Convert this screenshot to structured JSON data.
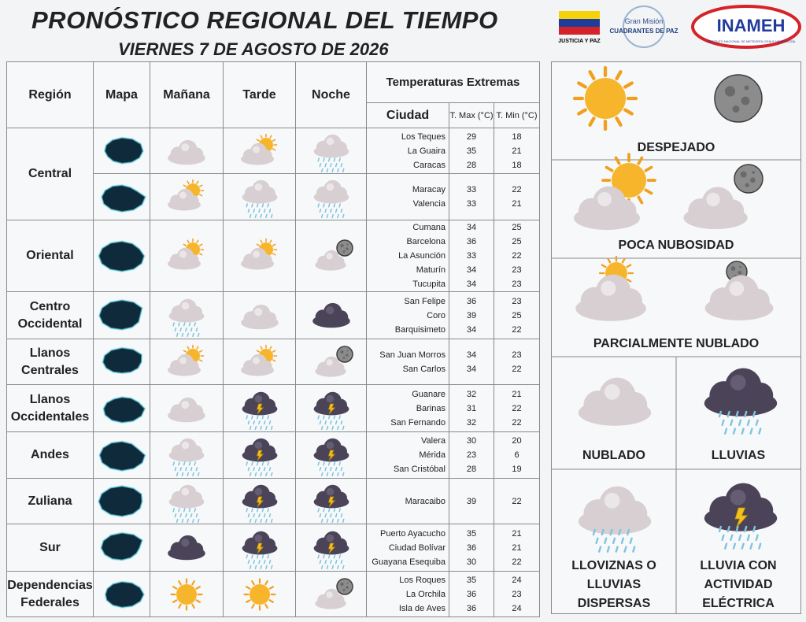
{
  "header": {
    "title": "PRONÓSTICO REGIONAL DEL TIEMPO",
    "subtitle": "VIERNES 7 DE AGOSTO DE 2026",
    "logos": {
      "flag_caption": "JUSTICIA Y PAZ",
      "mision_top": "Gran Misión",
      "mision_main": "CUADRANTES DE PAZ",
      "inameh": "INAMEH",
      "inameh_caption": "INSTITUTO NACIONAL DE METEOROLOGÍA E HIDROLOGÍA"
    }
  },
  "table": {
    "headers": {
      "region": "Región",
      "map": "Mapa",
      "morning": "Mañana",
      "afternoon": "Tarde",
      "night": "Noche",
      "temps": "Temperaturas  Extremas",
      "city": "Ciudad",
      "tmax": "T. Max (°C)",
      "tmin": "T. Min (°C)"
    },
    "regions": [
      {
        "name": "Central",
        "cities": [
          {
            "name": "Los Teques",
            "max": 29,
            "min": 18
          },
          {
            "name": "La Guaira",
            "max": 35,
            "min": 21
          },
          {
            "name": "Caracas",
            "max": 28,
            "min": 18
          },
          {
            "name": "Maracay",
            "max": 33,
            "min": 22
          },
          {
            "name": "Valencia",
            "max": 33,
            "min": 21
          }
        ]
      },
      {
        "name": "Oriental",
        "cities": [
          {
            "name": "Cumana",
            "max": 34,
            "min": 25
          },
          {
            "name": "Barcelona",
            "max": 36,
            "min": 25
          },
          {
            "name": "La Asunción",
            "max": 33,
            "min": 22
          },
          {
            "name": "Maturín",
            "max": 34,
            "min": 23
          },
          {
            "name": "Tucupita",
            "max": 34,
            "min": 23
          }
        ]
      },
      {
        "name": "Centro Occidental",
        "cities": [
          {
            "name": "San Felipe",
            "max": 36,
            "min": 23
          },
          {
            "name": "Coro",
            "max": 39,
            "min": 25
          },
          {
            "name": "Barquisimeto",
            "max": 34,
            "min": 22
          }
        ]
      },
      {
        "name": "Llanos Centrales",
        "cities": [
          {
            "name": "San Juan Morros",
            "max": 34,
            "min": 23
          },
          {
            "name": "San Carlos",
            "max": 34,
            "min": 22
          }
        ]
      },
      {
        "name": "Llanos Occidentales",
        "cities": [
          {
            "name": "Guanare",
            "max": 32,
            "min": 21
          },
          {
            "name": "Barinas",
            "max": 31,
            "min": 22
          },
          {
            "name": "San Fernando",
            "max": 32,
            "min": 22
          }
        ]
      },
      {
        "name": "Andes",
        "cities": [
          {
            "name": "Valera",
            "max": 30,
            "min": 20
          },
          {
            "name": "Mérida",
            "max": 23,
            "min": 6
          },
          {
            "name": "San Cristóbal",
            "max": 28,
            "min": 19
          }
        ]
      },
      {
        "name": "Zuliana",
        "cities": [
          {
            "name": "Maracaibo",
            "max": 39,
            "min": 22
          }
        ]
      },
      {
        "name": "Sur",
        "cities": [
          {
            "name": "Puerto Ayacucho",
            "max": 35,
            "min": 21
          },
          {
            "name": "Ciudad Bolívar",
            "max": 36,
            "min": 21
          },
          {
            "name": "Guayana Esequiba",
            "max": 30,
            "min": 22
          }
        ]
      },
      {
        "name": "Dependencias Federales",
        "cities": [
          {
            "name": "Los Roques",
            "max": 35,
            "min": 24
          },
          {
            "name": "La Orchila",
            "max": 36,
            "min": 23
          },
          {
            "name": "Isla de Aves",
            "max": 36,
            "min": 24
          }
        ]
      }
    ]
  },
  "legend": {
    "clear": "DESPEJADO",
    "few_clouds": "POCA NUBOSIDAD",
    "partly": "PARCIALMENTE NUBLADO",
    "cloudy": "NUBLADO",
    "rain": "LLUVIAS",
    "drizzle": "LLOVIZNAS O LLUVIAS DISPERSAS",
    "storm": "LLUVIA CON ACTIVIDAD ELÉCTRICA"
  }
}
